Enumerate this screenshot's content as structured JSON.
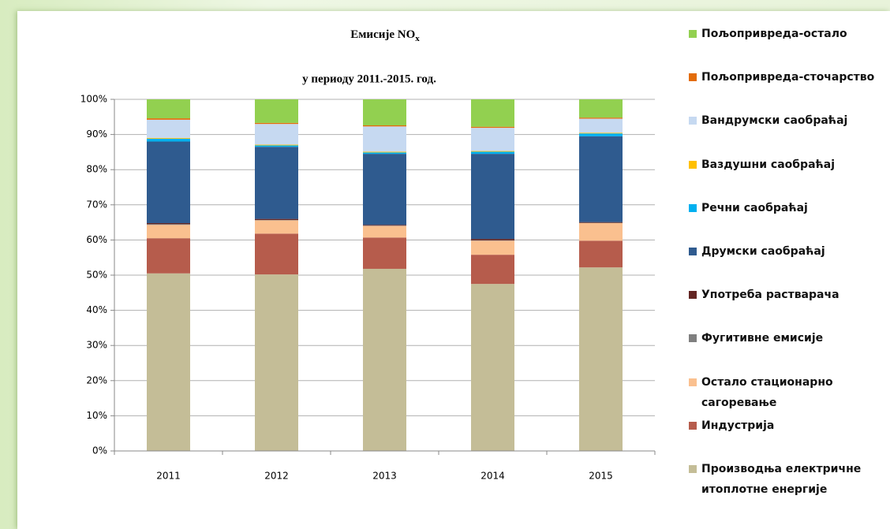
{
  "chart_data": {
    "type": "stacked_bar",
    "title": "Емисије NO",
    "title_subscript": "x",
    "subtitle": "у периоду 2011.-2015. год.",
    "categories": [
      "2011",
      "2012",
      "2013",
      "2014",
      "2015"
    ],
    "ylim": [
      0,
      100
    ],
    "yticks": [
      {
        "value": 0,
        "label": "0%"
      },
      {
        "value": 10,
        "label": "10%"
      },
      {
        "value": 20,
        "label": "20%"
      },
      {
        "value": 30,
        "label": "30%"
      },
      {
        "value": 40,
        "label": "40%"
      },
      {
        "value": 50,
        "label": "50%"
      },
      {
        "value": 60,
        "label": "60%"
      },
      {
        "value": 70,
        "label": "70%"
      },
      {
        "value": 80,
        "label": "80%"
      },
      {
        "value": 90,
        "label": "90%"
      },
      {
        "value": 100,
        "label": "100%"
      }
    ],
    "grid": true,
    "legend": "right",
    "series": [
      {
        "name": "Производња електричне итоплотне енергије",
        "color": "#c4bd97",
        "values": [
          50.5,
          50.2,
          51.8,
          47.5,
          52.2
        ]
      },
      {
        "name": "Индустрија",
        "color": "#b65c4c",
        "values": [
          10,
          11.6,
          8.9,
          8.3,
          7.6
        ]
      },
      {
        "name": "Остало стационарно сагоревање",
        "color": "#fac08f",
        "values": [
          3.8,
          3.8,
          3.3,
          4.0,
          5.0
        ]
      },
      {
        "name": "Фугитивне емисије",
        "color": "#7f7f7f",
        "values": [
          0.2,
          0.1,
          0.1,
          0.1,
          0.1
        ]
      },
      {
        "name": "Употреба растварача",
        "color": "#632523",
        "values": [
          0.3,
          0.3,
          0.2,
          0.4,
          0.2
        ]
      },
      {
        "name": "Друмски саобраћај",
        "color": "#2f5b8f",
        "values": [
          23.2,
          20.5,
          20.2,
          24.2,
          24.4
        ]
      },
      {
        "name": "Речни саобраћај",
        "color": "#00b0f0",
        "values": [
          0.8,
          0.4,
          0.4,
          0.6,
          0.8
        ]
      },
      {
        "name": "Ваздушни саобраћај",
        "color": "#ffc000",
        "values": [
          0.2,
          0.2,
          0.2,
          0.2,
          0.2
        ]
      },
      {
        "name": "Вандрумски саобраћај",
        "color": "#c6d9f1",
        "values": [
          5.2,
          5.9,
          7.2,
          6.6,
          4.0
        ]
      },
      {
        "name": "Пољопривреда-сточарство",
        "color": "#e36c09",
        "values": [
          0.4,
          0.3,
          0.3,
          0.3,
          0.3
        ]
      },
      {
        "name": "Пољопривреда-остало",
        "color": "#92d050",
        "values": [
          5.4,
          6.7,
          7.4,
          7.8,
          5.2
        ]
      }
    ]
  }
}
